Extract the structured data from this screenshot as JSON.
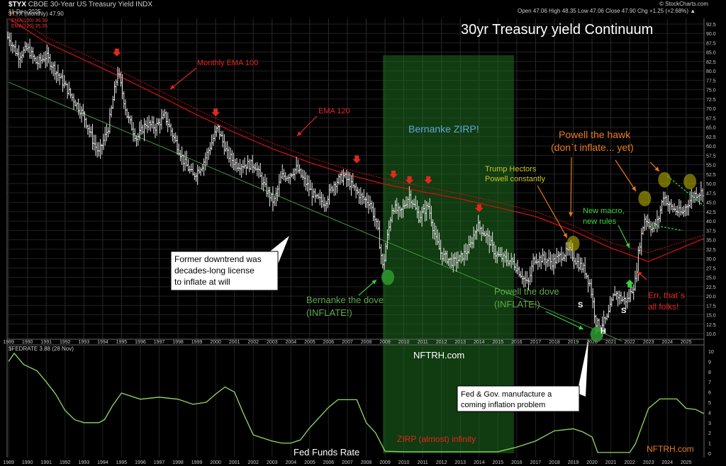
{
  "header": {
    "symbol": "$TYX",
    "name": "CBOE 30-Year US Treasury Yield INDX",
    "date": "11-Dec-2025",
    "quote_line": "Open 47.06  High 48.35  Low 47.06  Close 47.90  Chg +1.25 (+2.68%) ▲",
    "credit": "© StockCharts.com",
    "legend_line1": "$TYX (Monthly) 47.90",
    "legend_line2": "EMA(100) 36.30",
    "legend_line3": "EMA(120) 35.35",
    "lower_legend": "$FEDRATE 3.88 (28 Nov)"
  },
  "colors": {
    "background": "#000000",
    "price_bars": "#e6e6e6",
    "ema100": "#cc1010",
    "ema120": "#cc1010",
    "long_trendline": "#3a9a3a",
    "zirp_band": "#1f6b1f",
    "fedrate_line": "#8fdc63",
    "axis_text": "#c8c8c8",
    "arrow_red": "#e0281e",
    "arrow_orange": "#e87a1e",
    "arrow_green": "#3ad13a",
    "oval_yellow": "#c8c000",
    "oval_green": "#2e9a2e"
  },
  "chart_data": [
    {
      "type": "ohlc",
      "title": "30yr Treasury yield Continuum",
      "x_ticks": [
        "1989",
        "1990",
        "1991",
        "1992",
        "1993",
        "1994",
        "1995",
        "1996",
        "1997",
        "1998",
        "1999",
        "2000",
        "2001",
        "2002",
        "2003",
        "2004",
        "2005",
        "2006",
        "2007",
        "2008",
        "2009",
        "2010",
        "2011",
        "2012",
        "2013",
        "2014",
        "2015",
        "2016",
        "2017",
        "2018",
        "2019",
        "2020",
        "2021",
        "2022",
        "2023",
        "2024",
        "2025"
      ],
      "y_ticks": [
        10,
        12.5,
        15,
        17.5,
        20,
        22.5,
        25,
        27.5,
        30,
        32.5,
        35,
        37.5,
        40,
        42.5,
        45,
        47.5,
        50,
        52.5,
        55,
        57.5,
        60,
        62.5,
        65,
        67.5,
        70,
        72.5,
        75,
        77.5,
        80,
        82.5,
        85,
        87.5,
        90,
        92.5
      ],
      "ylim": [
        8.5,
        94
      ],
      "x_range": [
        1988.92,
        2025.95
      ],
      "grid": true,
      "series": [
        {
          "name": "$TYX (Monthly)",
          "style": "bars",
          "x": [
            1989.0,
            1989.5,
            1990.0,
            1990.5,
            1991.0,
            1991.5,
            1992.0,
            1992.5,
            1993.0,
            1993.5,
            1993.8,
            1994.3,
            1994.8,
            1995.3,
            1995.8,
            1996.3,
            1996.8,
            1997.3,
            1997.8,
            1998.3,
            1998.8,
            1999.3,
            1999.8,
            2000.1,
            2000.6,
            2001.1,
            2001.6,
            2002.1,
            2002.6,
            2003.1,
            2003.5,
            2003.8,
            2004.3,
            2004.8,
            2005.3,
            2005.8,
            2006.3,
            2006.8,
            2007.3,
            2007.8,
            2008.2,
            2008.6,
            2008.9,
            2009.0,
            2009.4,
            2009.8,
            2010.3,
            2010.8,
            2011.3,
            2011.7,
            2012.0,
            2012.6,
            2013.0,
            2013.5,
            2013.9,
            2014.4,
            2014.9,
            2015.3,
            2015.8,
            2016.2,
            2016.6,
            2016.9,
            2017.4,
            2017.9,
            2018.4,
            2018.8,
            2019.2,
            2019.6,
            2019.9,
            2020.2,
            2020.4,
            2020.8,
            2021.2,
            2021.6,
            2021.9,
            2022.3,
            2022.5,
            2022.8,
            2023.2,
            2023.5,
            2023.8,
            2024.1,
            2024.4,
            2024.8,
            2025.0,
            2025.4,
            2025.95
          ],
          "close": [
            89,
            84,
            86,
            82,
            84,
            80,
            76,
            72,
            68,
            61,
            58,
            65,
            80,
            68,
            62,
            66,
            65,
            68,
            62,
            56,
            52,
            55,
            61,
            65,
            58,
            55,
            55,
            55,
            49,
            45,
            52,
            52,
            54,
            50,
            46,
            45,
            50,
            52,
            49,
            46,
            45,
            38,
            27,
            32,
            44,
            42,
            47,
            41,
            44,
            35,
            31,
            29,
            30,
            33,
            39,
            36,
            31,
            30,
            29,
            26,
            23,
            30,
            30,
            29,
            31,
            32,
            29,
            27,
            23,
            13,
            12,
            14,
            21,
            19,
            19,
            24,
            33,
            41,
            38,
            40,
            47,
            44,
            43,
            42,
            44,
            47,
            47.9
          ]
        },
        {
          "name": "EMA(100)",
          "style": "line",
          "x": [
            1989,
            1991,
            1993,
            1995,
            1997,
            1999,
            2001,
            2003,
            2005,
            2007,
            2009,
            2011,
            2013,
            2015,
            2017,
            2019,
            2021,
            2023,
            2025.95
          ],
          "values": [
            96,
            89,
            84.5,
            79.8,
            74.8,
            69.8,
            65,
            60.8,
            57,
            53.8,
            51.2,
            49.2,
            47.3,
            45,
            42.5,
            38.8,
            34.2,
            31.6,
            36.3
          ]
        },
        {
          "name": "EMA(120)",
          "style": "line",
          "x": [
            1989,
            1991,
            1993,
            1995,
            1997,
            1999,
            2001,
            2003,
            2005,
            2007,
            2009,
            2011,
            2013,
            2015,
            2017,
            2019,
            2021,
            2023,
            2025.95
          ],
          "values": [
            94,
            87.6,
            83,
            78.3,
            73.4,
            68.3,
            63.6,
            59.3,
            55.6,
            52.4,
            49.8,
            47.8,
            45.9,
            43.6,
            41.2,
            37.4,
            32.8,
            29.2,
            35.35
          ]
        },
        {
          "name": "trendline",
          "style": "line",
          "x": [
            1989,
            2021.6
          ],
          "values": [
            77,
            8
          ]
        }
      ]
    },
    {
      "type": "line",
      "title": "Fed Funds Rate",
      "ylim": [
        0,
        10
      ],
      "y_ticks": [
        0,
        1,
        2,
        3,
        4,
        5,
        6,
        7,
        8,
        9,
        10
      ],
      "series": [
        {
          "name": "$FEDRATE",
          "x": [
            1989.0,
            1989.3,
            1989.8,
            1990.5,
            1991.0,
            1991.5,
            1992.0,
            1992.5,
            1993.0,
            1993.8,
            1994.1,
            1994.5,
            1995.0,
            1995.5,
            1996.0,
            1997.0,
            1998.0,
            1998.8,
            1999.5,
            2000.0,
            2000.5,
            2001.0,
            2001.5,
            2002.0,
            2003.0,
            2003.5,
            2004.0,
            2004.5,
            2005.0,
            2006.0,
            2006.5,
            2007.5,
            2008.0,
            2008.5,
            2009.0,
            2010.0,
            2015.0,
            2016.0,
            2017.0,
            2018.0,
            2019.0,
            2019.5,
            2020.0,
            2020.3,
            2021.0,
            2022.0,
            2022.3,
            2022.6,
            2023.0,
            2023.6,
            2024.5,
            2025.0,
            2025.5,
            2025.95
          ],
          "values": [
            9.0,
            9.8,
            8.7,
            8.1,
            7.0,
            5.8,
            4.2,
            3.3,
            3.0,
            3.0,
            3.3,
            4.6,
            5.9,
            5.6,
            5.3,
            5.5,
            5.3,
            4.8,
            5.0,
            5.8,
            6.5,
            6.0,
            3.8,
            1.8,
            1.2,
            1.0,
            1.0,
            1.3,
            2.5,
            4.5,
            5.25,
            5.25,
            3.0,
            2.0,
            0.2,
            0.15,
            0.15,
            0.6,
            1.2,
            2.2,
            2.4,
            2.1,
            1.6,
            0.08,
            0.08,
            0.08,
            0.9,
            2.4,
            4.4,
            5.33,
            5.33,
            4.4,
            4.3,
            3.88
          ]
        }
      ]
    }
  ],
  "annotations": {
    "bernanke_zirp": "Bernanke ZIRP!",
    "monthly_ema100": "Monthly EMA 100",
    "ema120": "EMA 120",
    "former_downtrend_1": "Former downtrend was",
    "former_downtrend_2": "decades-long license",
    "former_downtrend_3": "to inflate at will",
    "bernanke_dove_1": "Bernanke the dove",
    "bernanke_dove_2": "(INFLATE!)",
    "trump_hectors_1": "Trump Hectors",
    "trump_hectors_2": "Powell constantly",
    "powell_dove_1": "Powell the dove",
    "powell_dove_2": "(INFLATE!)",
    "powell_hawk_1": "Powell the hawk",
    "powell_hawk_2": "(don`t inflate... yet)",
    "new_macro_1": "New macro,",
    "new_macro_2": "new rules",
    "err_1": "Err, that`s",
    "err_2": "all folks!",
    "s_left": "S",
    "h_mid": "H",
    "s_right": "S",
    "nftrh_upper": "NFTRH.com",
    "fed_gov_1": "Fed & Gov. manufacture a",
    "fed_gov_2": "coming inflation problem",
    "zirp_infinity": "ZIRP (almost) infinity",
    "fed_funds_rate": "Fed Funds Rate",
    "nftrh_lower": "NFTRH.com"
  }
}
